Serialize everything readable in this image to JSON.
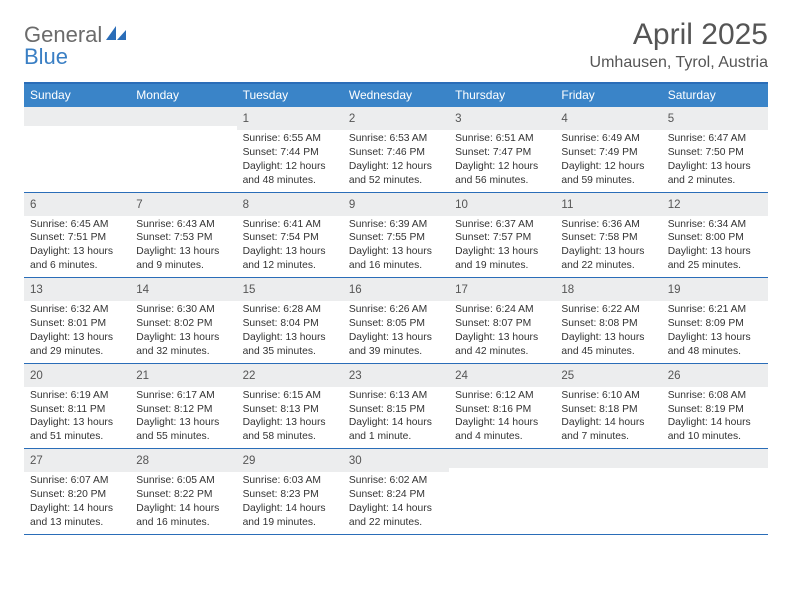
{
  "logo": {
    "word1": "General",
    "word2": "Blue"
  },
  "title": "April 2025",
  "location": "Umhausen, Tyrol, Austria",
  "colors": {
    "header_bg": "#3a84c8",
    "border": "#2a6db8",
    "daynum_bg": "#ecedee",
    "text": "#333333",
    "title_text": "#555555"
  },
  "days_of_week": [
    "Sunday",
    "Monday",
    "Tuesday",
    "Wednesday",
    "Thursday",
    "Friday",
    "Saturday"
  ],
  "weeks": [
    [
      null,
      null,
      {
        "n": "1",
        "sr": "Sunrise: 6:55 AM",
        "ss": "Sunset: 7:44 PM",
        "dl": "Daylight: 12 hours and 48 minutes."
      },
      {
        "n": "2",
        "sr": "Sunrise: 6:53 AM",
        "ss": "Sunset: 7:46 PM",
        "dl": "Daylight: 12 hours and 52 minutes."
      },
      {
        "n": "3",
        "sr": "Sunrise: 6:51 AM",
        "ss": "Sunset: 7:47 PM",
        "dl": "Daylight: 12 hours and 56 minutes."
      },
      {
        "n": "4",
        "sr": "Sunrise: 6:49 AM",
        "ss": "Sunset: 7:49 PM",
        "dl": "Daylight: 12 hours and 59 minutes."
      },
      {
        "n": "5",
        "sr": "Sunrise: 6:47 AM",
        "ss": "Sunset: 7:50 PM",
        "dl": "Daylight: 13 hours and 2 minutes."
      }
    ],
    [
      {
        "n": "6",
        "sr": "Sunrise: 6:45 AM",
        "ss": "Sunset: 7:51 PM",
        "dl": "Daylight: 13 hours and 6 minutes."
      },
      {
        "n": "7",
        "sr": "Sunrise: 6:43 AM",
        "ss": "Sunset: 7:53 PM",
        "dl": "Daylight: 13 hours and 9 minutes."
      },
      {
        "n": "8",
        "sr": "Sunrise: 6:41 AM",
        "ss": "Sunset: 7:54 PM",
        "dl": "Daylight: 13 hours and 12 minutes."
      },
      {
        "n": "9",
        "sr": "Sunrise: 6:39 AM",
        "ss": "Sunset: 7:55 PM",
        "dl": "Daylight: 13 hours and 16 minutes."
      },
      {
        "n": "10",
        "sr": "Sunrise: 6:37 AM",
        "ss": "Sunset: 7:57 PM",
        "dl": "Daylight: 13 hours and 19 minutes."
      },
      {
        "n": "11",
        "sr": "Sunrise: 6:36 AM",
        "ss": "Sunset: 7:58 PM",
        "dl": "Daylight: 13 hours and 22 minutes."
      },
      {
        "n": "12",
        "sr": "Sunrise: 6:34 AM",
        "ss": "Sunset: 8:00 PM",
        "dl": "Daylight: 13 hours and 25 minutes."
      }
    ],
    [
      {
        "n": "13",
        "sr": "Sunrise: 6:32 AM",
        "ss": "Sunset: 8:01 PM",
        "dl": "Daylight: 13 hours and 29 minutes."
      },
      {
        "n": "14",
        "sr": "Sunrise: 6:30 AM",
        "ss": "Sunset: 8:02 PM",
        "dl": "Daylight: 13 hours and 32 minutes."
      },
      {
        "n": "15",
        "sr": "Sunrise: 6:28 AM",
        "ss": "Sunset: 8:04 PM",
        "dl": "Daylight: 13 hours and 35 minutes."
      },
      {
        "n": "16",
        "sr": "Sunrise: 6:26 AM",
        "ss": "Sunset: 8:05 PM",
        "dl": "Daylight: 13 hours and 39 minutes."
      },
      {
        "n": "17",
        "sr": "Sunrise: 6:24 AM",
        "ss": "Sunset: 8:07 PM",
        "dl": "Daylight: 13 hours and 42 minutes."
      },
      {
        "n": "18",
        "sr": "Sunrise: 6:22 AM",
        "ss": "Sunset: 8:08 PM",
        "dl": "Daylight: 13 hours and 45 minutes."
      },
      {
        "n": "19",
        "sr": "Sunrise: 6:21 AM",
        "ss": "Sunset: 8:09 PM",
        "dl": "Daylight: 13 hours and 48 minutes."
      }
    ],
    [
      {
        "n": "20",
        "sr": "Sunrise: 6:19 AM",
        "ss": "Sunset: 8:11 PM",
        "dl": "Daylight: 13 hours and 51 minutes."
      },
      {
        "n": "21",
        "sr": "Sunrise: 6:17 AM",
        "ss": "Sunset: 8:12 PM",
        "dl": "Daylight: 13 hours and 55 minutes."
      },
      {
        "n": "22",
        "sr": "Sunrise: 6:15 AM",
        "ss": "Sunset: 8:13 PM",
        "dl": "Daylight: 13 hours and 58 minutes."
      },
      {
        "n": "23",
        "sr": "Sunrise: 6:13 AM",
        "ss": "Sunset: 8:15 PM",
        "dl": "Daylight: 14 hours and 1 minute."
      },
      {
        "n": "24",
        "sr": "Sunrise: 6:12 AM",
        "ss": "Sunset: 8:16 PM",
        "dl": "Daylight: 14 hours and 4 minutes."
      },
      {
        "n": "25",
        "sr": "Sunrise: 6:10 AM",
        "ss": "Sunset: 8:18 PM",
        "dl": "Daylight: 14 hours and 7 minutes."
      },
      {
        "n": "26",
        "sr": "Sunrise: 6:08 AM",
        "ss": "Sunset: 8:19 PM",
        "dl": "Daylight: 14 hours and 10 minutes."
      }
    ],
    [
      {
        "n": "27",
        "sr": "Sunrise: 6:07 AM",
        "ss": "Sunset: 8:20 PM",
        "dl": "Daylight: 14 hours and 13 minutes."
      },
      {
        "n": "28",
        "sr": "Sunrise: 6:05 AM",
        "ss": "Sunset: 8:22 PM",
        "dl": "Daylight: 14 hours and 16 minutes."
      },
      {
        "n": "29",
        "sr": "Sunrise: 6:03 AM",
        "ss": "Sunset: 8:23 PM",
        "dl": "Daylight: 14 hours and 19 minutes."
      },
      {
        "n": "30",
        "sr": "Sunrise: 6:02 AM",
        "ss": "Sunset: 8:24 PM",
        "dl": "Daylight: 14 hours and 22 minutes."
      },
      null,
      null,
      null
    ]
  ]
}
